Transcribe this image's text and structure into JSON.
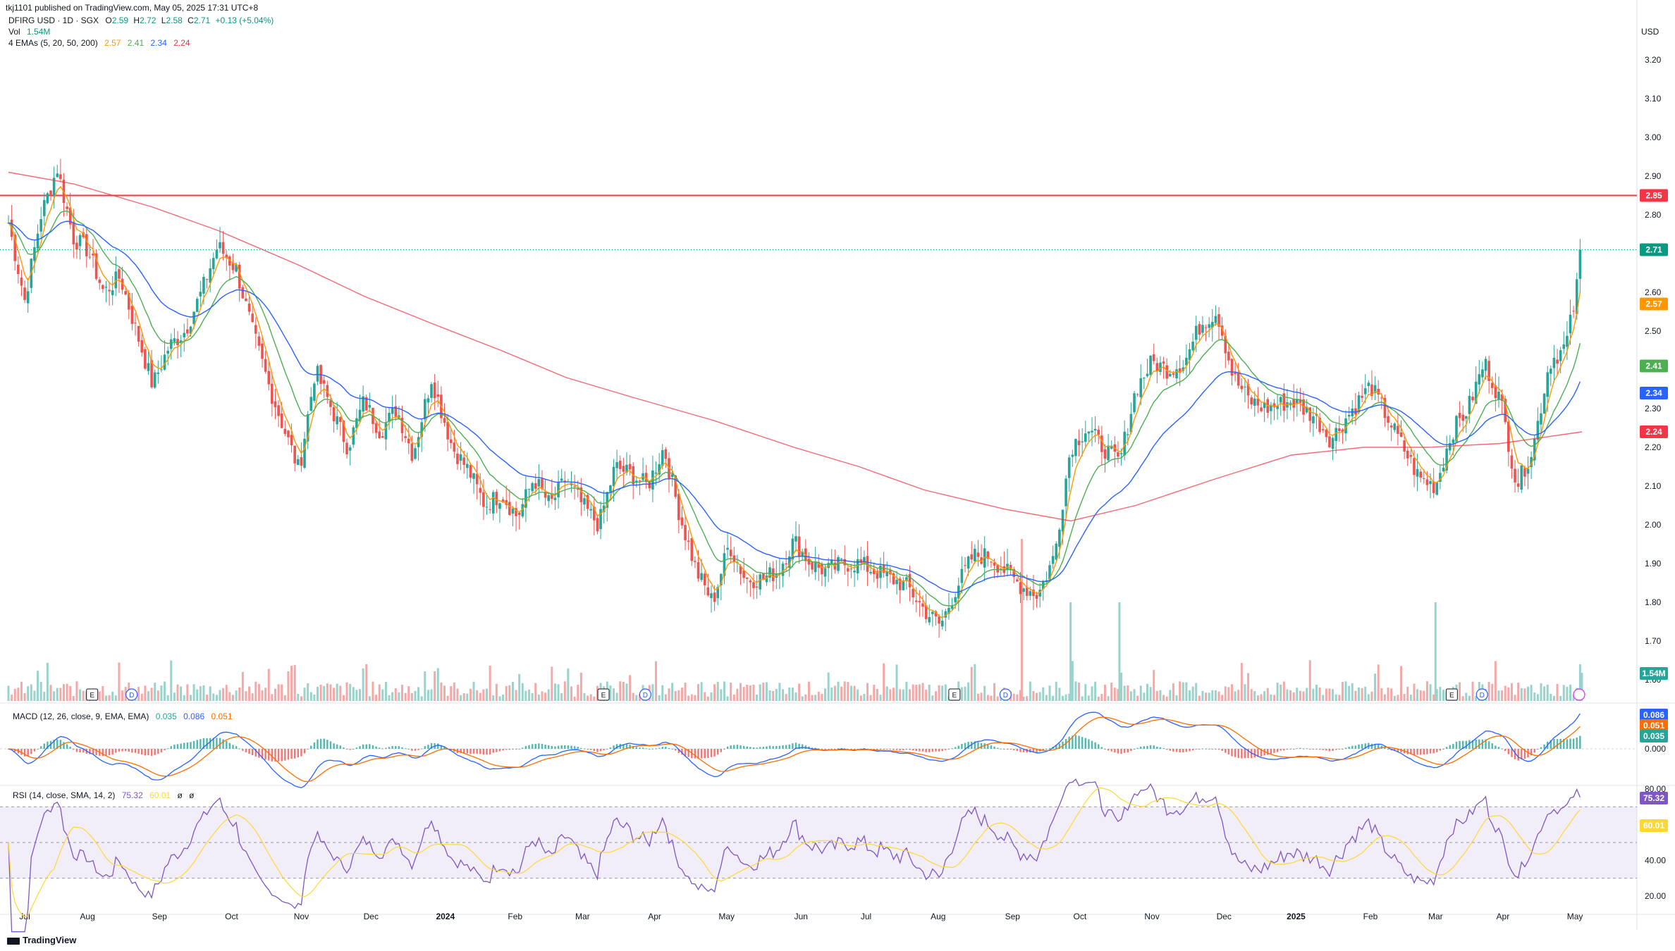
{
  "header": {
    "published": "tkj1101 published on TradingView.com, May 05, 2025 17:31 UTC+8",
    "symbol": "DFIRG USD · 1D · SGX",
    "o_label": "O",
    "o_value": "2.59",
    "h_label": "H",
    "h_value": "2.72",
    "l_label": "L",
    "l_value": "2.58",
    "c_label": "C",
    "c_value": "2.71",
    "change": "+0.13 (+5.04%)",
    "vol_label": "Vol",
    "vol_value": "1.54M",
    "ema_label": "4 EMAs (5, 20, 50, 200)",
    "ema_values": [
      "2.57",
      "2.41",
      "2.34",
      "2.24"
    ]
  },
  "currency": "USD",
  "macd_legend": {
    "label": "MACD (12, 26, close, 9, EMA, EMA)",
    "values": [
      "0.035",
      "0.086",
      "0.051"
    ]
  },
  "rsi_legend": {
    "label": "RSI (14, close, SMA, 14, 2)",
    "values": [
      "75.32",
      "60.01",
      "ø",
      "ø"
    ]
  },
  "footer": {
    "brand": "TradingView"
  },
  "colors": {
    "up": "#26a69a",
    "down": "#ef5350",
    "ema5": "#ff9800",
    "ema20": "#4caf50",
    "ema50": "#2962ff",
    "ema200": "#f23645",
    "rsi": "#7e57c2",
    "rsi_ma": "#fdd835",
    "resistance": "#f23645"
  },
  "icons": [
    "earnings-icon",
    "dividend-icon",
    "flash-icon",
    "tradingview-logo-icon"
  ],
  "price_pills": [
    {
      "text": "2.85",
      "value": 2.85,
      "color": "#f23645"
    },
    {
      "text": "2.71",
      "value": 2.71,
      "color": "#089981"
    },
    {
      "text": "2.57",
      "value": 2.57,
      "color": "#ff9800"
    },
    {
      "text": "2.41",
      "value": 2.41,
      "color": "#4caf50"
    },
    {
      "text": "2.34",
      "value": 2.34,
      "color": "#2962ff"
    },
    {
      "text": "2.24",
      "value": 2.24,
      "color": "#f23645"
    }
  ],
  "volume_pill": {
    "text": "1.54M",
    "color": "#26a69a"
  },
  "macd_pills": [
    {
      "text": "0.086",
      "value": 0.086,
      "color": "#2962ff"
    },
    {
      "text": "0.051",
      "value": 0.051,
      "color": "#ff6d00"
    },
    {
      "text": "0.035",
      "value": 0.035,
      "color": "#26a69a"
    }
  ],
  "rsi_pills": [
    {
      "text": "75.32",
      "value": 75.32,
      "color": "#7e57c2"
    },
    {
      "text": "60.01",
      "value": 60.01,
      "color": "#fdd835"
    }
  ],
  "chart_data": {
    "type": "candlestick",
    "title": "DFIRG USD · 1D · SGX",
    "price_axis": {
      "ticks": [
        "3.20",
        "3.10",
        "3.00",
        "2.90",
        "2.80",
        "2.60",
        "2.50",
        "2.30",
        "2.20",
        "2.10",
        "2.00",
        "1.90",
        "1.80",
        "1.70",
        "1.60"
      ],
      "tick_values": [
        3.2,
        3.1,
        3.0,
        2.9,
        2.8,
        2.6,
        2.5,
        2.3,
        2.2,
        2.1,
        2.0,
        1.9,
        1.8,
        1.7,
        1.6
      ],
      "range": [
        1.56,
        3.32
      ]
    },
    "time_axis": {
      "labels": [
        "Jul",
        "Aug",
        "Sep",
        "Oct",
        "Nov",
        "Dec",
        "2024",
        "Feb",
        "Mar",
        "Apr",
        "May",
        "Jun",
        "Jul",
        "Aug",
        "Sep",
        "Oct",
        "Nov",
        "Dec",
        "2025",
        "Feb",
        "Mar",
        "Apr",
        "May"
      ],
      "bold": [
        "2024",
        "2025"
      ],
      "range": [
        "2023-06-28",
        "2025-05-05"
      ]
    },
    "resistance_line": 2.85,
    "last_price": 2.71,
    "close_points": [
      [
        "2023-06-28",
        2.78
      ],
      [
        "2023-07-05",
        2.58
      ],
      [
        "2023-07-12",
        2.8
      ],
      [
        "2023-07-19",
        2.92
      ],
      [
        "2023-07-26",
        2.74
      ],
      [
        "2023-08-01",
        2.71
      ],
      [
        "2023-08-08",
        2.6
      ],
      [
        "2023-08-15",
        2.64
      ],
      [
        "2023-08-22",
        2.5
      ],
      [
        "2023-08-29",
        2.36
      ],
      [
        "2023-09-05",
        2.46
      ],
      [
        "2023-09-12",
        2.5
      ],
      [
        "2023-09-19",
        2.6
      ],
      [
        "2023-09-26",
        2.72
      ],
      [
        "2023-10-04",
        2.66
      ],
      [
        "2023-10-11",
        2.5
      ],
      [
        "2023-10-18",
        2.36
      ],
      [
        "2023-10-25",
        2.24
      ],
      [
        "2023-10-31",
        2.14
      ],
      [
        "2023-11-07",
        2.4
      ],
      [
        "2023-11-14",
        2.3
      ],
      [
        "2023-11-21",
        2.2
      ],
      [
        "2023-11-28",
        2.32
      ],
      [
        "2023-12-05",
        2.24
      ],
      [
        "2023-12-12",
        2.3
      ],
      [
        "2023-12-19",
        2.18
      ],
      [
        "2023-12-27",
        2.38
      ],
      [
        "2024-01-05",
        2.2
      ],
      [
        "2024-01-12",
        2.14
      ],
      [
        "2024-01-19",
        2.05
      ],
      [
        "2024-01-26",
        2.08
      ],
      [
        "2024-02-02",
        2.02
      ],
      [
        "2024-02-09",
        2.12
      ],
      [
        "2024-02-16",
        2.05
      ],
      [
        "2024-02-23",
        2.12
      ],
      [
        "2024-03-01",
        2.05
      ],
      [
        "2024-03-08",
        2.0
      ],
      [
        "2024-03-15",
        2.15
      ],
      [
        "2024-03-22",
        2.13
      ],
      [
        "2024-03-29",
        2.1
      ],
      [
        "2024-04-05",
        2.2
      ],
      [
        "2024-04-12",
        2.02
      ],
      [
        "2024-04-19",
        1.88
      ],
      [
        "2024-04-26",
        1.8
      ],
      [
        "2024-05-03",
        1.95
      ],
      [
        "2024-05-10",
        1.86
      ],
      [
        "2024-05-17",
        1.86
      ],
      [
        "2024-05-24",
        1.88
      ],
      [
        "2024-05-31",
        1.96
      ],
      [
        "2024-06-07",
        1.9
      ],
      [
        "2024-06-14",
        1.88
      ],
      [
        "2024-06-21",
        1.9
      ],
      [
        "2024-06-28",
        1.9
      ],
      [
        "2024-07-05",
        1.88
      ],
      [
        "2024-07-12",
        1.86
      ],
      [
        "2024-07-19",
        1.84
      ],
      [
        "2024-07-26",
        1.78
      ],
      [
        "2024-08-02",
        1.74
      ],
      [
        "2024-08-09",
        1.84
      ],
      [
        "2024-08-16",
        1.92
      ],
      [
        "2024-08-23",
        1.92
      ],
      [
        "2024-08-30",
        1.88
      ],
      [
        "2024-09-06",
        1.84
      ],
      [
        "2024-09-13",
        1.82
      ],
      [
        "2024-09-20",
        1.92
      ],
      [
        "2024-09-27",
        2.2
      ],
      [
        "2024-10-04",
        2.25
      ],
      [
        "2024-10-11",
        2.2
      ],
      [
        "2024-10-18",
        2.16
      ],
      [
        "2024-10-25",
        2.35
      ],
      [
        "2024-11-01",
        2.42
      ],
      [
        "2024-11-08",
        2.4
      ],
      [
        "2024-11-15",
        2.42
      ],
      [
        "2024-11-22",
        2.52
      ],
      [
        "2024-11-29",
        2.55
      ],
      [
        "2024-12-06",
        2.38
      ],
      [
        "2024-12-13",
        2.32
      ],
      [
        "2024-12-20",
        2.3
      ],
      [
        "2024-12-31",
        2.32
      ],
      [
        "2025-01-10",
        2.28
      ],
      [
        "2025-01-17",
        2.22
      ],
      [
        "2025-01-24",
        2.28
      ],
      [
        "2025-02-03",
        2.36
      ],
      [
        "2025-02-10",
        2.28
      ],
      [
        "2025-02-17",
        2.2
      ],
      [
        "2025-02-24",
        2.12
      ],
      [
        "2025-03-03",
        2.1
      ],
      [
        "2025-03-10",
        2.24
      ],
      [
        "2025-03-17",
        2.3
      ],
      [
        "2025-03-24",
        2.42
      ],
      [
        "2025-03-31",
        2.32
      ],
      [
        "2025-04-07",
        2.1
      ],
      [
        "2025-04-14",
        2.2
      ],
      [
        "2025-04-21",
        2.42
      ],
      [
        "2025-04-28",
        2.46
      ],
      [
        "2025-05-02",
        2.58
      ],
      [
        "2025-05-05",
        2.71
      ]
    ],
    "ema_series": [
      {
        "name": "EMA 5",
        "last": 2.57
      },
      {
        "name": "EMA 20",
        "last": 2.41
      },
      {
        "name": "EMA 50",
        "last": 2.34
      },
      {
        "name": "EMA 200",
        "last": 2.24
      }
    ],
    "ema200_points": [
      [
        "2023-06-28",
        2.91
      ],
      [
        "2023-07-26",
        2.88
      ],
      [
        "2023-08-29",
        2.82
      ],
      [
        "2023-09-26",
        2.76
      ],
      [
        "2023-10-31",
        2.67
      ],
      [
        "2023-11-28",
        2.59
      ],
      [
        "2023-12-27",
        2.52
      ],
      [
        "2024-01-26",
        2.45
      ],
      [
        "2024-02-23",
        2.38
      ],
      [
        "2024-03-22",
        2.33
      ],
      [
        "2024-04-26",
        2.27
      ],
      [
        "2024-05-31",
        2.2
      ],
      [
        "2024-06-28",
        2.15
      ],
      [
        "2024-07-26",
        2.09
      ],
      [
        "2024-08-30",
        2.04
      ],
      [
        "2024-09-27",
        2.01
      ],
      [
        "2024-10-25",
        2.05
      ],
      [
        "2024-11-29",
        2.12
      ],
      [
        "2024-12-31",
        2.18
      ],
      [
        "2025-01-31",
        2.2
      ],
      [
        "2025-02-28",
        2.2
      ],
      [
        "2025-03-31",
        2.21
      ],
      [
        "2025-05-05",
        2.24
      ]
    ],
    "volume_highlights": [
      [
        "2024-09-06",
        "E"
      ],
      [
        "2024-09-27",
        "high"
      ],
      [
        "2024-10-18",
        "high"
      ],
      [
        "2025-03-03",
        "high"
      ],
      [
        "2025-05-05",
        "1.54M"
      ]
    ],
    "macd": {
      "ticks": [
        "0.000"
      ],
      "last": {
        "macd": 0.086,
        "signal": 0.051,
        "histogram": 0.035
      },
      "range": [
        -0.09,
        0.11
      ]
    },
    "rsi": {
      "ticks": [
        "80.00",
        "60.00",
        "40.00",
        "20.00"
      ],
      "tick_values": [
        80,
        60,
        40,
        20
      ],
      "overbought": 70,
      "oversold": 30,
      "mid": 50,
      "last": 75.32,
      "ma_last": 60.01,
      "range": [
        18,
        82
      ]
    },
    "events": [
      {
        "date": "2023-08-03",
        "type": "E"
      },
      {
        "date": "2023-08-20",
        "type": "D"
      },
      {
        "date": "2024-03-10",
        "type": "E"
      },
      {
        "date": "2024-03-28",
        "type": "D"
      },
      {
        "date": "2024-08-08",
        "type": "E"
      },
      {
        "date": "2024-08-30",
        "type": "D"
      },
      {
        "date": "2025-03-10",
        "type": "E"
      },
      {
        "date": "2025-03-23",
        "type": "D"
      }
    ]
  }
}
